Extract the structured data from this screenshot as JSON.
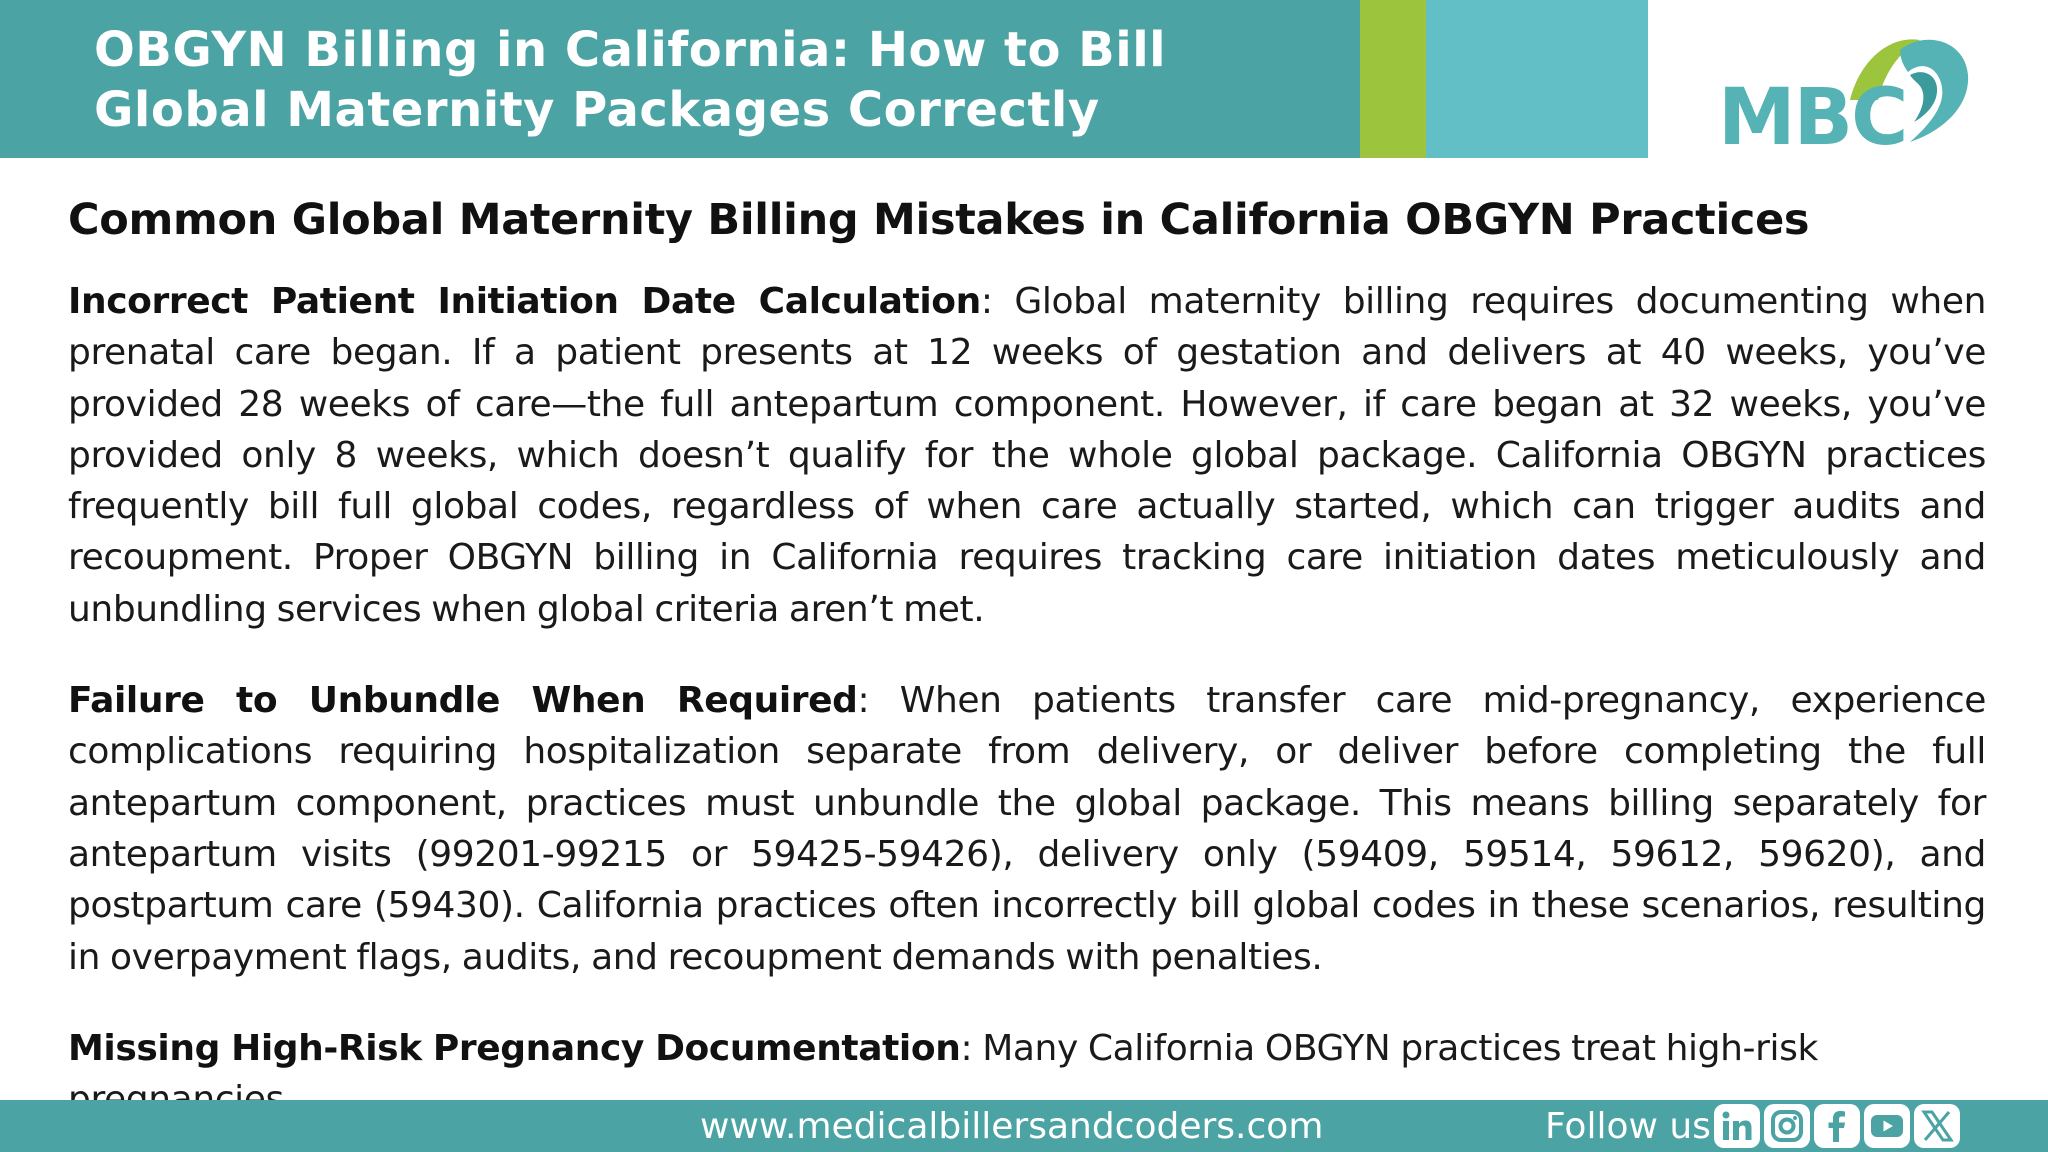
{
  "header": {
    "title": "OBGYN Billing in California: How to Bill Global Maternity Packages Correctly",
    "colors": {
      "teal": "#4ba3a4",
      "green": "#9cc43c",
      "light_teal": "#62bfc6"
    }
  },
  "logo": {
    "text": "MBC",
    "icon": "mbc-logo-swoosh-icon"
  },
  "main": {
    "heading": "Common Global Maternity Billing Mistakes in California OBGYN Practices",
    "paragraphs": [
      {
        "lead": "Incorrect Patient Initiation Date Calculation",
        "body": ": Global maternity billing requires documenting when prenatal care began. If a patient presents at 12 weeks of gestation and delivers at 40 weeks, you’ve provided 28 weeks of care—the full antepartum component. However, if care began at 32 weeks, you’ve provided only 8 weeks, which doesn’t qualify for the whole global package. California OBGYN practices frequently bill full global codes, regardless of when care actually started, which can trigger audits and recoupment. Proper OBGYN billing in California requires tracking care initiation dates meticulously and unbundling services when global criteria aren’t met."
      },
      {
        "lead": "Failure to Unbundle When Required",
        "body": ": When patients transfer care mid-pregnancy, experience complications requiring hospitalization separate from delivery, or deliver before completing the full antepartum component, practices must unbundle the global package. This means billing separately for antepartum visits (99201-99215 or 59425-59426), delivery only (59409, 59514, 59612, 59620), and postpartum care (59430). California practices often incorrectly bill global codes in these scenarios, resulting in overpayment flags, audits, and recoupment demands with penalties."
      },
      {
        "lead": "Missing High-Risk Pregnancy Documentation",
        "body": ": Many California OBGYN practices treat high-risk pregnancies"
      }
    ]
  },
  "footer": {
    "url": "www.medicalbillersandcoders.com",
    "follow_label": "Follow us:",
    "social_icons": [
      "linkedin-icon",
      "instagram-icon",
      "facebook-icon",
      "youtube-icon",
      "x-icon"
    ]
  }
}
